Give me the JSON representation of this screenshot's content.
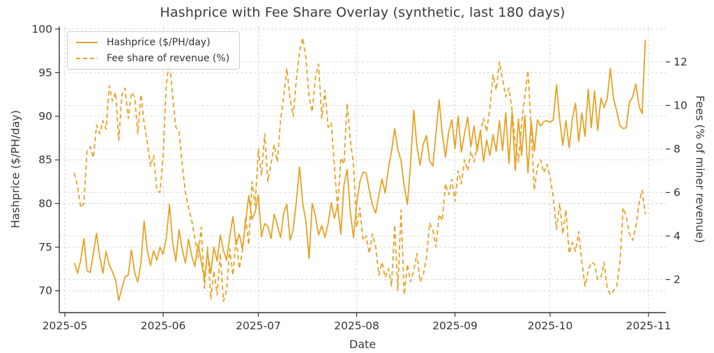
{
  "chart_data": {
    "type": "line",
    "title": "Hashprice with Fee Share Overlay (synthetic, last 180 days)",
    "xlabel": "Date",
    "x_tick_labels": [
      "2025-05",
      "2025-06",
      "2025-07",
      "2025-08",
      "2025-09",
      "2025-10",
      "2025-11"
    ],
    "start_date": "2025-05-04",
    "frequency": "daily",
    "grid": true,
    "legend_position": "upper left",
    "accent_color": "#E7A122",
    "left_axis": {
      "label": "Hashprice ($/PH/day)",
      "ticks": [
        70,
        75,
        80,
        85,
        90,
        95,
        100
      ],
      "range": [
        67.5,
        100.3
      ]
    },
    "right_axis": {
      "label": "Fees (% of miner revenue)",
      "ticks": [
        2,
        4,
        6,
        8,
        10,
        12
      ],
      "range": [
        0.48,
        13.63
      ]
    },
    "series": [
      {
        "name": "Hashprice ($/PH/day)",
        "axis": "left",
        "style": "solid",
        "color": "#E7A122",
        "values": [
          73.2,
          72.0,
          73.5,
          76.0,
          72.3,
          72.1,
          74.3,
          76.6,
          73.9,
          72.0,
          74.5,
          73.0,
          72.2,
          71.2,
          68.9,
          70.3,
          71.6,
          71.8,
          74.7,
          72.1,
          71.0,
          73.2,
          78.0,
          74.6,
          72.9,
          74.6,
          73.5,
          75.0,
          74.2,
          76.1,
          79.9,
          75.5,
          73.4,
          77.0,
          74.8,
          73.2,
          75.9,
          74.0,
          72.8,
          75.4,
          73.4,
          71.3,
          74.4,
          72.0,
          75.0,
          73.4,
          76.4,
          74.6,
          73.5,
          76.2,
          78.5,
          75.3,
          76.5,
          74.8,
          77.9,
          80.9,
          78.2,
          79.0,
          81.0,
          76.2,
          77.7,
          77.4,
          76.0,
          78.8,
          77.5,
          76.1,
          78.9,
          79.9,
          75.8,
          77.0,
          80.3,
          84.2,
          80.0,
          78.0,
          73.7,
          80.0,
          78.6,
          76.4,
          77.5,
          76.1,
          77.7,
          80.1,
          78.3,
          79.9,
          76.5,
          82.1,
          83.9,
          79.0,
          76.1,
          79.9,
          82.5,
          83.6,
          83.5,
          81.5,
          79.8,
          78.9,
          81.0,
          82.8,
          81.2,
          84.0,
          86.0,
          88.6,
          86.2,
          84.9,
          82.0,
          79.9,
          84.5,
          90.7,
          86.6,
          84.4,
          86.8,
          87.8,
          84.9,
          84.3,
          87.9,
          91.9,
          88.0,
          85.3,
          88.2,
          89.6,
          86.3,
          90.0,
          85.9,
          88.0,
          89.9,
          86.5,
          88.9,
          86.0,
          88.4,
          84.8,
          87.3,
          85.5,
          87.9,
          86.0,
          89.5,
          86.1,
          90.4,
          84.6,
          90.5,
          83.8,
          89.7,
          85.5,
          90.1,
          83.5,
          89.5,
          86.0,
          89.6,
          88.9,
          89.4,
          89.5,
          89.3,
          89.6,
          93.6,
          89.7,
          86.7,
          89.5,
          86.4,
          89.7,
          91.5,
          87.1,
          90.4,
          87.7,
          93.1,
          88.7,
          92.9,
          88.4,
          92.1,
          91.0,
          92.1,
          95.5,
          92.0,
          90.6,
          88.9,
          88.6,
          88.7,
          91.6,
          92.2,
          93.7,
          91.2,
          90.3,
          98.8
        ]
      },
      {
        "name": "Fee share of revenue (%)",
        "axis": "right",
        "style": "dashed",
        "color": "#E7A122",
        "values": [
          6.9,
          6.3,
          5.3,
          5.5,
          7.9,
          8.1,
          7.6,
          9.1,
          8.7,
          9.3,
          8.9,
          10.9,
          10.2,
          10.6,
          8.4,
          10.5,
          10.8,
          9.4,
          10.6,
          10.4,
          8.7,
          10.5,
          9.2,
          8.3,
          7.2,
          7.7,
          6.1,
          6.0,
          7.7,
          11.0,
          12.1,
          10.4,
          9.0,
          8.8,
          7.3,
          6.0,
          5.3,
          4.7,
          3.9,
          3.0,
          4.4,
          1.6,
          3.5,
          1.1,
          2.4,
          1.3,
          3.2,
          1.0,
          1.5,
          3.4,
          2.2,
          3.9,
          2.5,
          3.3,
          4.9,
          3.6,
          6.5,
          5.4,
          8.0,
          6.8,
          8.7,
          6.5,
          7.3,
          8.2,
          7.4,
          9.3,
          10.4,
          11.7,
          10.3,
          9.5,
          11.2,
          12.5,
          13.1,
          12.2,
          10.4,
          9.7,
          11.3,
          11.9,
          9.4,
          10.7,
          9.0,
          9.2,
          7.2,
          5.2,
          7.6,
          7.3,
          10.1,
          8.4,
          7.3,
          4.4,
          5.3,
          3.8,
          4.0,
          3.2,
          4.1,
          3.5,
          2.2,
          2.8,
          2.1,
          2.5,
          1.7,
          4.5,
          1.5,
          5.2,
          1.3,
          2.7,
          1.9,
          2.4,
          3.2,
          1.9,
          2.2,
          3.0,
          4.6,
          4.3,
          3.5,
          5.0,
          4.7,
          6.4,
          5.9,
          6.6,
          5.6,
          7.0,
          6.4,
          7.5,
          7.0,
          7.9,
          7.4,
          8.1,
          8.8,
          9.4,
          8.8,
          9.9,
          11.4,
          10.7,
          12.0,
          11.2,
          10.4,
          10.8,
          9.8,
          8.3,
          7.4,
          9.2,
          10.4,
          11.6,
          9.0,
          6.1,
          7.2,
          7.5,
          6.9,
          7.3,
          6.7,
          5.8,
          4.3,
          5.5,
          4.1,
          5.2,
          3.2,
          3.7,
          3.3,
          4.2,
          2.8,
          1.7,
          2.4,
          2.8,
          2.7,
          2.0,
          2.1,
          2.8,
          1.6,
          1.3,
          1.5,
          1.7,
          2.8,
          5.3,
          4.9,
          4.1,
          3.8,
          4.4,
          5.5,
          6.1,
          5.0
        ]
      }
    ]
  }
}
